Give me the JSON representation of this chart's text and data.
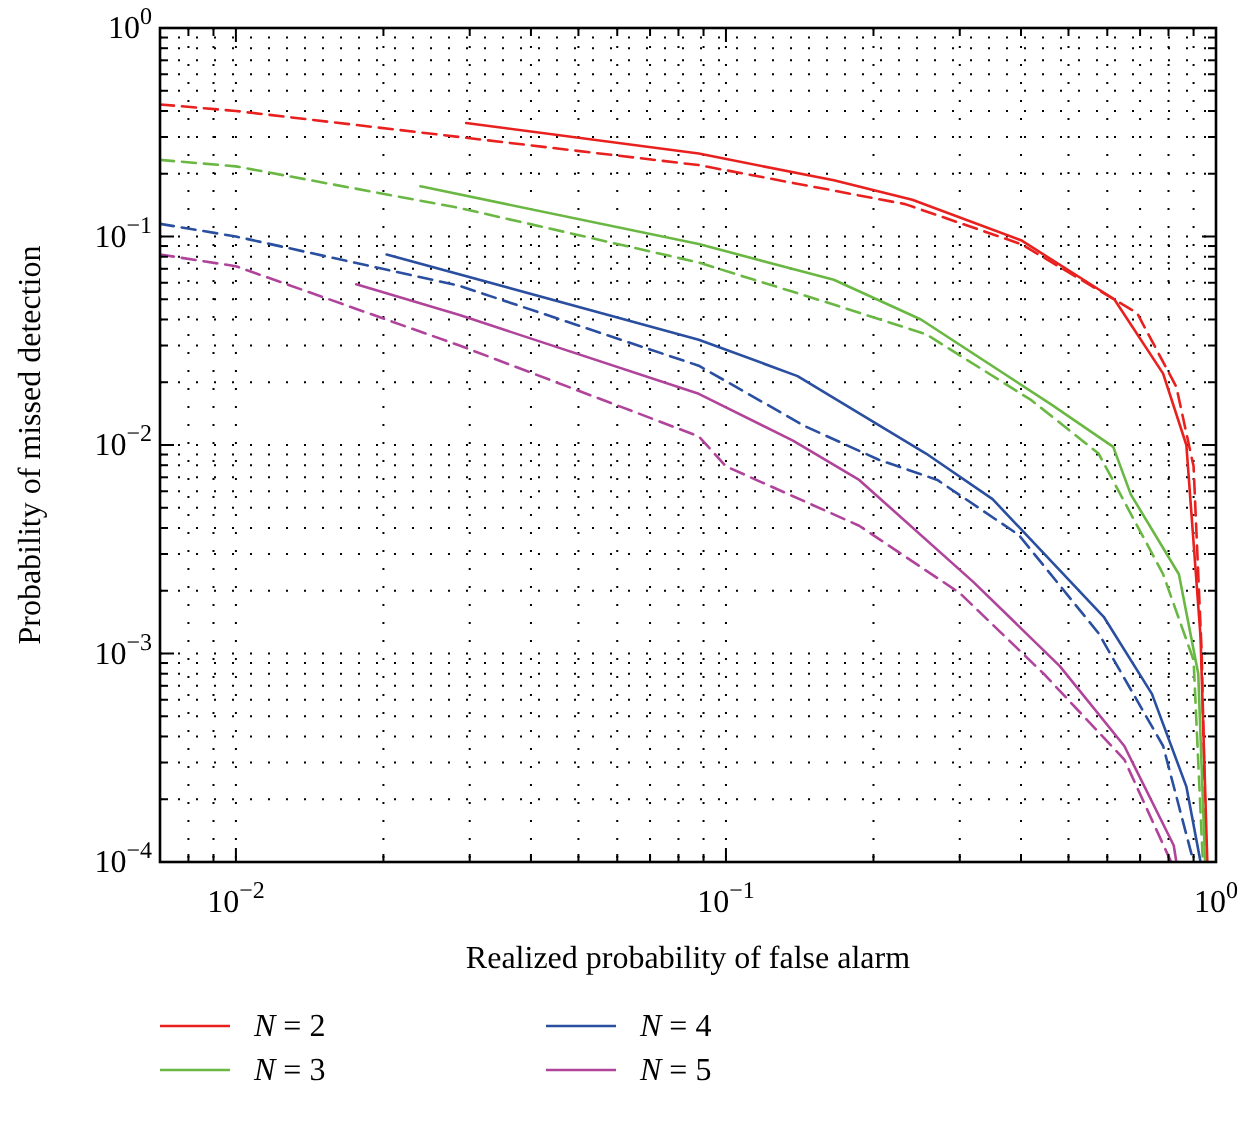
{
  "chart_data": {
    "type": "line",
    "xlabel": "Realized probability of false alarm",
    "ylabel": "Probability of missed detection",
    "log": "xy",
    "grid": true,
    "legend": "bottom",
    "line_style": "solid",
    "marker": "none",
    "xlim": [
      0.007,
      1
    ],
    "ylim": [
      0.0001,
      1
    ],
    "xticks": [
      {
        "value": 0.007,
        "label": null
      },
      {
        "value": 0.008,
        "label": null
      },
      {
        "value": 0.009,
        "label": null
      },
      {
        "value": 0.01,
        "label": "10$^{−2}$"
      },
      {
        "value": 0.02,
        "label": null
      },
      {
        "value": 0.03,
        "label": null
      },
      {
        "value": 0.04,
        "label": null
      },
      {
        "value": 0.05,
        "label": null
      },
      {
        "value": 0.06,
        "label": null
      },
      {
        "value": 0.07,
        "label": null
      },
      {
        "value": 0.08,
        "label": null
      },
      {
        "value": 0.09,
        "label": null
      },
      {
        "value": 0.1,
        "label": "10$^{−1}$"
      },
      {
        "value": 0.2,
        "label": null
      },
      {
        "value": 0.3,
        "label": null
      },
      {
        "value": 0.4,
        "label": null
      },
      {
        "value": 0.5,
        "label": null
      },
      {
        "value": 0.6,
        "label": null
      },
      {
        "value": 0.7,
        "label": null
      },
      {
        "value": 0.8,
        "label": null
      },
      {
        "value": 0.9,
        "label": null
      },
      {
        "value": 1,
        "label": "10$^{0}$"
      }
    ],
    "yticks": [
      {
        "value": 0.0001,
        "label": "10$^{−4}$"
      },
      {
        "value": 0.0002,
        "label": null
      },
      {
        "value": 0.0003,
        "label": null
      },
      {
        "value": 0.0004,
        "label": null
      },
      {
        "value": 0.0005,
        "label": null
      },
      {
        "value": 0.0006,
        "label": null
      },
      {
        "value": 0.0007,
        "label": null
      },
      {
        "value": 0.0008,
        "label": null
      },
      {
        "value": 0.0009,
        "label": null
      },
      {
        "value": 0.001,
        "label": "10$^{−3}$"
      },
      {
        "value": 0.002,
        "label": null
      },
      {
        "value": 0.003,
        "label": null
      },
      {
        "value": 0.004,
        "label": null
      },
      {
        "value": 0.005,
        "label": null
      },
      {
        "value": 0.006,
        "label": null
      },
      {
        "value": 0.007,
        "label": null
      },
      {
        "value": 0.008,
        "label": null
      },
      {
        "value": 0.009,
        "label": null
      },
      {
        "value": 0.01,
        "label": "10$^{−2}$"
      },
      {
        "value": 0.02,
        "label": null
      },
      {
        "value": 0.03,
        "label": null
      },
      {
        "value": 0.04,
        "label": null
      },
      {
        "value": 0.05,
        "label": null
      },
      {
        "value": 0.06,
        "label": null
      },
      {
        "value": 0.07,
        "label": null
      },
      {
        "value": 0.08,
        "label": null
      },
      {
        "value": 0.09,
        "label": null
      },
      {
        "value": 0.1,
        "label": "10$^{−1}$"
      },
      {
        "value": 0.2,
        "label": null
      },
      {
        "value": 0.3,
        "label": null
      },
      {
        "value": 0.4,
        "label": null
      },
      {
        "value": 0.5,
        "label": null
      },
      {
        "value": 0.6,
        "label": null
      },
      {
        "value": 0.7,
        "label": null
      },
      {
        "value": 0.8,
        "label": null
      },
      {
        "value": 0.9,
        "label": null
      },
      {
        "value": 1,
        "label": "10$^{0}$"
      }
    ],
    "series": [
      {
        "name": "N = 2",
        "color": "#e8211f",
        "x": [
          0.0295,
          0.088,
          0.166,
          0.24,
          0.4,
          0.62,
          0.78,
          0.87,
          0.93,
          0.96
        ],
        "values": [
          0.35,
          0.25,
          0.186,
          0.15,
          0.096,
          0.05,
          0.022,
          0.01,
          0.0012,
          0.0001
        ]
      },
      {
        "color": "#e8211f",
        "line_style": "dashed",
        "x": [
          0.007,
          0.01,
          0.0286,
          0.088,
          0.232,
          0.4,
          0.69,
          0.83,
          0.9,
          0.935,
          0.955
        ],
        "values": [
          0.43,
          0.4,
          0.3,
          0.22,
          0.143,
          0.092,
          0.043,
          0.019,
          0.0079,
          0.001,
          0.0001
        ]
      },
      {
        "name": "N = 3",
        "color": "#6ab843",
        "x": [
          0.0238,
          0.088,
          0.166,
          0.25,
          0.46,
          0.617,
          0.67,
          0.84,
          0.92,
          0.95
        ],
        "values": [
          0.174,
          0.092,
          0.062,
          0.04,
          0.0157,
          0.0098,
          0.0058,
          0.0024,
          0.0008,
          0.0001
        ]
      },
      {
        "color": "#6ab843",
        "line_style": "dashed",
        "x": [
          0.007,
          0.01,
          0.0286,
          0.088,
          0.155,
          0.256,
          0.42,
          0.576,
          0.78,
          0.9,
          0.94
        ],
        "values": [
          0.233,
          0.217,
          0.137,
          0.075,
          0.0496,
          0.034,
          0.0164,
          0.0091,
          0.0024,
          0.00093,
          0.0001
        ]
      },
      {
        "name": "N = 4",
        "color": "#2a4fa0",
        "x": [
          0.0203,
          0.088,
          0.14,
          0.256,
          0.35,
          0.59,
          0.74,
          0.87,
          0.93
        ],
        "values": [
          0.082,
          0.032,
          0.0214,
          0.0091,
          0.0055,
          0.0015,
          0.00064,
          0.00023,
          0.0001
        ]
      },
      {
        "color": "#2a4fa0",
        "line_style": "dashed",
        "x": [
          0.007,
          0.01,
          0.0286,
          0.088,
          0.145,
          0.205,
          0.27,
          0.396,
          0.576,
          0.78,
          0.9
        ],
        "values": [
          0.115,
          0.1,
          0.058,
          0.024,
          0.0123,
          0.0085,
          0.0068,
          0.0037,
          0.00125,
          0.00036,
          0.0001
        ]
      },
      {
        "name": "N = 5",
        "color": "#b0449b",
        "x": [
          0.0176,
          0.0286,
          0.088,
          0.137,
          0.187,
          0.32,
          0.48,
          0.65,
          0.82,
          0.83
        ],
        "values": [
          0.059,
          0.042,
          0.0176,
          0.0105,
          0.0068,
          0.0022,
          0.00087,
          0.00036,
          0.00012,
          0.0001
        ]
      },
      {
        "color": "#b0449b",
        "line_style": "dashed",
        "x": [
          0.007,
          0.01,
          0.0286,
          0.088,
          0.1,
          0.187,
          0.3,
          0.445,
          0.65,
          0.81
        ],
        "values": [
          0.082,
          0.072,
          0.03,
          0.011,
          0.0079,
          0.0041,
          0.00195,
          0.0008,
          0.00031,
          0.0001
        ]
      }
    ]
  }
}
